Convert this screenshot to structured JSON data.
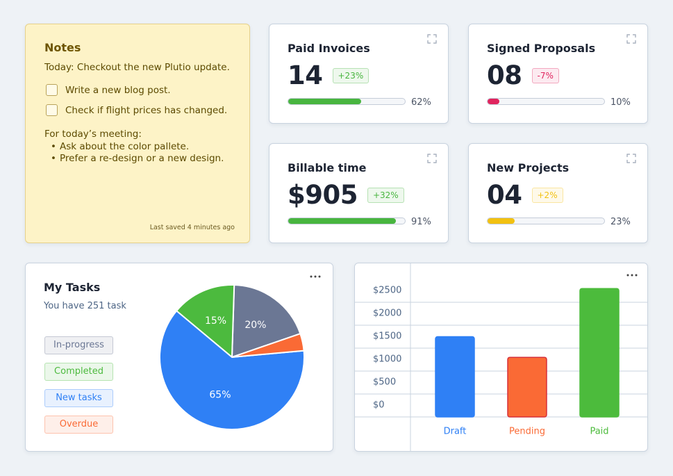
{
  "notes": {
    "title": "Notes",
    "today": "Today: Checkout the new Plutio update.",
    "checklist": [
      "Write a new blog post.",
      "Check if flight prices has changed."
    ],
    "meeting_title": "For today’s meeting:",
    "meeting_items": [
      "Ask about the color pallete.",
      "Prefer a re-design or a new design."
    ],
    "saved": "Last saved 4 minutes ago"
  },
  "stats": [
    {
      "title": "Paid Invoices",
      "value": "14",
      "change": "+23%",
      "progress": 62,
      "progress_label": "62%",
      "color": "#48b53f"
    },
    {
      "title": "Signed Proposals",
      "value": "08",
      "change": "-7%",
      "progress": 10,
      "progress_label": "10%",
      "color": "#e0245e"
    },
    {
      "title": "Billable time",
      "value": "$905",
      "change": "+32%",
      "progress": 91,
      "progress_label": "91%",
      "color": "#48b53f"
    },
    {
      "title": "New Projects",
      "value": "04",
      "change": "+2%",
      "progress": 23,
      "progress_label": "23%",
      "color": "#f2c111"
    }
  ],
  "tasks": {
    "title": "My Tasks",
    "subtitle": "You have 251 task",
    "chart_data": {
      "type": "pie",
      "categories": [
        "In-progress",
        "Completed",
        "New tasks",
        "Overdue"
      ],
      "colors": [
        "#6b7794",
        "#4cba3e",
        "#2f80f5",
        "#fa6a35"
      ],
      "values": [
        20,
        15,
        65,
        4
      ],
      "value_labels": [
        "20%",
        "15%",
        "65%",
        null
      ]
    }
  },
  "invoices": {
    "chart_data": {
      "type": "bar",
      "categories": [
        "Draft",
        "Pending",
        "Paid"
      ],
      "colors": [
        "#2f80f5",
        "#fa6a35",
        "#4cbb3c"
      ],
      "values": [
        1750,
        1300,
        2800
      ],
      "ylim": [
        0,
        3000
      ],
      "yticks": [
        {
          "value": 0,
          "label": "$0"
        },
        {
          "value": 500,
          "label": "$500"
        },
        {
          "value": 1000,
          "label": "$1000"
        },
        {
          "value": 1500,
          "label": "$1500"
        },
        {
          "value": 2000,
          "label": "$2000"
        },
        {
          "value": 2500,
          "label": "$2500"
        }
      ],
      "grid": true
    }
  }
}
